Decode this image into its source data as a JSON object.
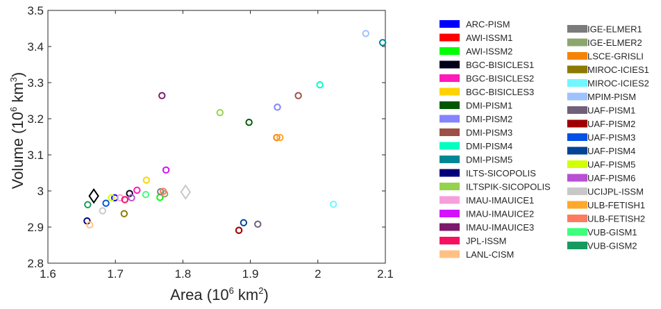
{
  "chart_data": {
    "type": "scatter",
    "xlabel": "Area (10",
    "xlabel_sup": "6",
    "xlabel_unit": " km",
    "xlabel_unit_sup": "2",
    "xlabel_end": ")",
    "ylabel": "Volume (10",
    "ylabel_sup": "6",
    "ylabel_unit": " km",
    "ylabel_unit_sup": "3",
    "ylabel_end": ")",
    "xlim": [
      1.6,
      2.1
    ],
    "ylim": [
      2.8,
      3.5
    ],
    "xticks": [
      "1.6",
      "1.7",
      "1.8",
      "1.9",
      "2",
      "2.1"
    ],
    "yticks": [
      "2.8",
      "2.9",
      "3",
      "3.1",
      "3.2",
      "3.3",
      "3.4",
      "3.5"
    ],
    "grid": false,
    "legend_placement": "outside-right",
    "series": [
      {
        "name": "ARC-PISM",
        "color": "#0000ff",
        "points": [
          [
            1.699,
            2.981
          ]
        ]
      },
      {
        "name": "AWI-ISSM1",
        "color": "#ff0000",
        "points": [
          [
            1.883,
            2.891
          ]
        ]
      },
      {
        "name": "AWI-ISSM2",
        "color": "#00ff00",
        "points": [
          [
            1.766,
            2.982
          ]
        ]
      },
      {
        "name": "BGC-BISICLES1",
        "color": "#00001a",
        "points": [
          [
            1.721,
            2.993
          ]
        ]
      },
      {
        "name": "BGC-BISICLES2",
        "color": "#ff1ab9",
        "points": [
          [
            1.732,
            3.002
          ]
        ]
      },
      {
        "name": "BGC-BISICLES3",
        "color": "#ffd300",
        "points": [
          [
            1.746,
            3.03
          ]
        ]
      },
      {
        "name": "DMI-PISM1",
        "color": "#005800",
        "points": [
          [
            1.898,
            3.19
          ]
        ]
      },
      {
        "name": "DMI-PISM2",
        "color": "#8484ff",
        "points": [
          [
            1.94,
            3.232
          ]
        ]
      },
      {
        "name": "DMI-PISM3",
        "color": "#9e4f46",
        "points": [
          [
            1.971,
            3.264
          ]
        ]
      },
      {
        "name": "DMI-PISM4",
        "color": "#00ffc1",
        "points": [
          [
            2.003,
            3.294
          ]
        ]
      },
      {
        "name": "DMI-PISM5",
        "color": "#008795",
        "points": [
          [
            2.096,
            3.411
          ]
        ]
      },
      {
        "name": "ILTS-SICOPOLIS",
        "color": "#00007b",
        "points": [
          [
            1.658,
            2.917
          ]
        ]
      },
      {
        "name": "ILTSPIK-SICOPOLIS",
        "color": "#95d34f",
        "points": [
          [
            1.855,
            3.217
          ]
        ]
      },
      {
        "name": "IMAU-IMAUICE1",
        "color": "#f69edc",
        "points": [
          [
            1.707,
            2.981
          ]
        ]
      },
      {
        "name": "IMAU-IMAUICE2",
        "color": "#d311ff",
        "points": [
          [
            1.775,
            3.058
          ]
        ]
      },
      {
        "name": "IMAU-IMAUICE3",
        "color": "#7b1a6a",
        "points": [
          [
            1.769,
            3.264
          ]
        ]
      },
      {
        "name": "JPL-ISSM",
        "color": "#f61160",
        "points": [
          [
            1.714,
            2.976
          ]
        ]
      },
      {
        "name": "LANL-CISM",
        "color": "#ffc183",
        "points": [
          [
            1.662,
            2.906
          ]
        ]
      },
      {
        "name": "IGE-ELMER1",
        "color": "#7b7b7b",
        "points": [
          [
            1.767,
            2.998
          ]
        ]
      },
      {
        "name": "IGE-ELMER2",
        "color": "#8ca66e",
        "points": [
          [
            1.773,
            2.992
          ]
        ]
      },
      {
        "name": "LSCE-GRISLI",
        "color": "#f68308",
        "points": [
          [
            1.939,
            3.148
          ]
        ]
      },
      {
        "name": "MIROC-ICIES1",
        "color": "#8c7b00",
        "points": [
          [
            1.713,
            2.937
          ]
        ]
      },
      {
        "name": "MIROC-ICIES2",
        "color": "#72f6ff",
        "points": [
          [
            2.023,
            2.963
          ]
        ]
      },
      {
        "name": "MPIM-PISM",
        "color": "#9ec1ff",
        "points": [
          [
            2.071,
            3.436
          ]
        ]
      },
      {
        "name": "UAF-PISM1",
        "color": "#72607b",
        "points": [
          [
            1.911,
            2.908
          ]
        ]
      },
      {
        "name": "UAF-PISM2",
        "color": "#9e0000",
        "points": [
          [
            1.883,
            2.891
          ]
        ]
      },
      {
        "name": "UAF-PISM3",
        "color": "#0051e6",
        "points": [
          [
            1.686,
            2.966
          ]
        ]
      },
      {
        "name": "UAF-PISM4",
        "color": "#004595",
        "points": [
          [
            1.89,
            2.912
          ]
        ]
      },
      {
        "name": "UAF-PISM5",
        "color": "#d3ff00",
        "points": [
          [
            1.694,
            2.981
          ]
        ]
      },
      {
        "name": "UAF-PISM6",
        "color": "#b94fd3",
        "points": [
          [
            1.724,
            2.981
          ]
        ]
      },
      {
        "name": "UCIJPL-ISSM",
        "color": "#c8c8c8",
        "points": [
          [
            1.681,
            2.945
          ]
        ]
      },
      {
        "name": "ULB-FETISH1",
        "color": "#ffa82a",
        "points": [
          [
            1.944,
            3.148
          ]
        ]
      },
      {
        "name": "ULB-FETISH2",
        "color": "#ff7b5f",
        "points": [
          [
            1.771,
            2.999
          ]
        ]
      },
      {
        "name": "VUB-GISM1",
        "color": "#3cff7b",
        "points": [
          [
            1.745,
            2.99
          ]
        ]
      },
      {
        "name": "VUB-GISM2",
        "color": "#179a60",
        "points": [
          [
            1.659,
            2.962
          ]
        ]
      }
    ],
    "diamonds": [
      {
        "color": "#000000",
        "points": [
          [
            1.668,
            2.986
          ]
        ]
      },
      {
        "color": "#c8c8c8",
        "points": [
          [
            1.804,
            2.997
          ]
        ]
      }
    ]
  }
}
